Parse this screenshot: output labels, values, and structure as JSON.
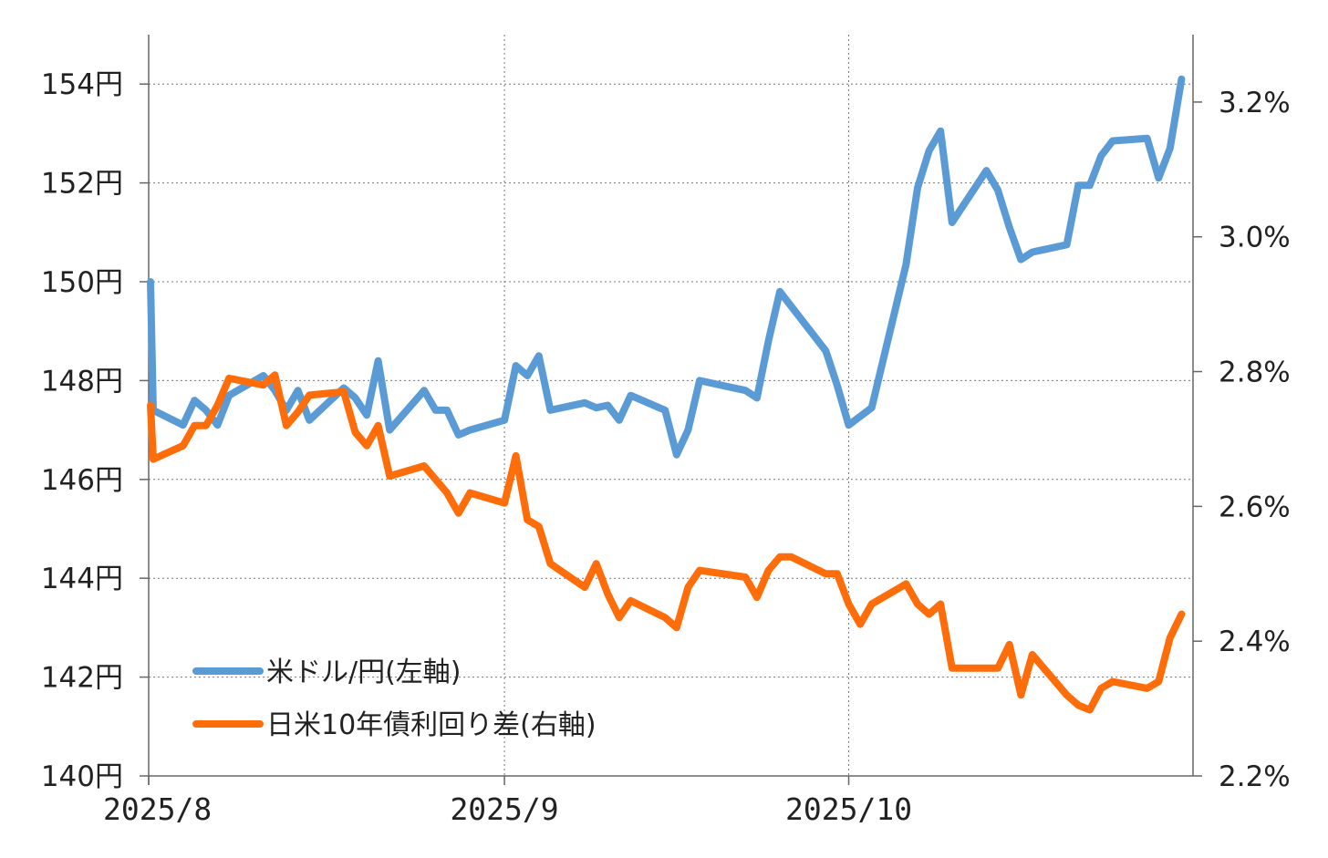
{
  "chart_data": {
    "type": "line",
    "left_axis": {
      "ticks": [
        140,
        142,
        144,
        146,
        148,
        150,
        152,
        154
      ],
      "tick_labels": [
        "140円",
        "142円",
        "144円",
        "146円",
        "148円",
        "150円",
        "152円",
        "154円"
      ],
      "range": [
        140,
        155
      ]
    },
    "right_axis": {
      "ticks": [
        2.2,
        2.4,
        2.6,
        2.8,
        3.0,
        3.2
      ],
      "tick_labels": [
        "2.2%",
        "2.4%",
        "2.6%",
        "2.8%",
        "3.0%",
        "3.2%"
      ],
      "range": [
        2.2,
        3.3
      ]
    },
    "x_axis": {
      "tick_labels": [
        "2025/8",
        "2025/9",
        "2025/10"
      ],
      "tick_dates": [
        "2025-08-01",
        "2025-09-01",
        "2025-10-01"
      ],
      "range": [
        "2025-08-01",
        "2025-10-31"
      ]
    },
    "grid": true,
    "legend_position": "bottom-left",
    "series": [
      {
        "name": "米ドル/円(左軸)",
        "axis": "left",
        "color": "#5b9bd5",
        "points": [
          [
            "2025-08-01",
            150.0
          ],
          [
            "2025-08-01",
            147.4
          ],
          [
            "2025-08-04",
            147.1
          ],
          [
            "2025-08-05",
            147.6
          ],
          [
            "2025-08-06",
            147.4
          ],
          [
            "2025-08-07",
            147.1
          ],
          [
            "2025-08-08",
            147.7
          ],
          [
            "2025-08-11",
            148.1
          ],
          [
            "2025-08-12",
            147.8
          ],
          [
            "2025-08-13",
            147.4
          ],
          [
            "2025-08-14",
            147.8
          ],
          [
            "2025-08-15",
            147.2
          ],
          [
            "2025-08-18",
            147.85
          ],
          [
            "2025-08-19",
            147.65
          ],
          [
            "2025-08-20",
            147.3
          ],
          [
            "2025-08-21",
            148.4
          ],
          [
            "2025-08-22",
            147.0
          ],
          [
            "2025-08-25",
            147.8
          ],
          [
            "2025-08-26",
            147.4
          ],
          [
            "2025-08-27",
            147.4
          ],
          [
            "2025-08-28",
            146.9
          ],
          [
            "2025-08-29",
            147.0
          ],
          [
            "2025-09-01",
            147.2
          ],
          [
            "2025-09-02",
            148.3
          ],
          [
            "2025-09-03",
            148.1
          ],
          [
            "2025-09-04",
            148.5
          ],
          [
            "2025-09-05",
            147.4
          ],
          [
            "2025-09-08",
            147.55
          ],
          [
            "2025-09-09",
            147.45
          ],
          [
            "2025-09-10",
            147.5
          ],
          [
            "2025-09-11",
            147.2
          ],
          [
            "2025-09-12",
            147.7
          ],
          [
            "2025-09-15",
            147.4
          ],
          [
            "2025-09-16",
            146.5
          ],
          [
            "2025-09-17",
            147.0
          ],
          [
            "2025-09-18",
            148.0
          ],
          [
            "2025-09-22",
            147.8
          ],
          [
            "2025-09-23",
            147.65
          ],
          [
            "2025-09-24",
            148.8
          ],
          [
            "2025-09-25",
            149.8
          ],
          [
            "2025-09-29",
            148.6
          ],
          [
            "2025-09-30",
            147.9
          ],
          [
            "2025-10-01",
            147.1
          ],
          [
            "2025-10-03",
            147.45
          ],
          [
            "2025-10-06",
            150.35
          ],
          [
            "2025-10-07",
            151.9
          ],
          [
            "2025-10-08",
            152.65
          ],
          [
            "2025-10-09",
            153.05
          ],
          [
            "2025-10-10",
            151.2
          ],
          [
            "2025-10-13",
            152.25
          ],
          [
            "2025-10-14",
            151.85
          ],
          [
            "2025-10-15",
            151.1
          ],
          [
            "2025-10-16",
            150.45
          ],
          [
            "2025-10-17",
            150.6
          ],
          [
            "2025-10-20",
            150.75
          ],
          [
            "2025-10-21",
            151.95
          ],
          [
            "2025-10-22",
            151.95
          ],
          [
            "2025-10-23",
            152.55
          ],
          [
            "2025-10-24",
            152.85
          ],
          [
            "2025-10-27",
            152.9
          ],
          [
            "2025-10-28",
            152.1
          ],
          [
            "2025-10-29",
            152.7
          ],
          [
            "2025-10-30",
            154.1
          ]
        ]
      },
      {
        "name": "日米10年債利回り差(右軸)",
        "axis": "right",
        "color": "#ff6d0a",
        "points": [
          [
            "2025-08-01",
            2.75
          ],
          [
            "2025-08-01",
            2.67
          ],
          [
            "2025-08-04",
            2.69
          ],
          [
            "2025-08-05",
            2.72
          ],
          [
            "2025-08-06",
            2.72
          ],
          [
            "2025-08-07",
            2.75
          ],
          [
            "2025-08-08",
            2.79
          ],
          [
            "2025-08-11",
            2.78
          ],
          [
            "2025-08-12",
            2.795
          ],
          [
            "2025-08-13",
            2.72
          ],
          [
            "2025-08-14",
            2.74
          ],
          [
            "2025-08-15",
            2.765
          ],
          [
            "2025-08-18",
            2.77
          ],
          [
            "2025-08-19",
            2.71
          ],
          [
            "2025-08-20",
            2.69
          ],
          [
            "2025-08-21",
            2.72
          ],
          [
            "2025-08-22",
            2.645
          ],
          [
            "2025-08-25",
            2.66
          ],
          [
            "2025-08-26",
            2.64
          ],
          [
            "2025-08-27",
            2.62
          ],
          [
            "2025-08-28",
            2.59
          ],
          [
            "2025-08-29",
            2.62
          ],
          [
            "2025-09-01",
            2.605
          ],
          [
            "2025-09-02",
            2.675
          ],
          [
            "2025-09-03",
            2.58
          ],
          [
            "2025-09-04",
            2.57
          ],
          [
            "2025-09-05",
            2.515
          ],
          [
            "2025-09-08",
            2.48
          ],
          [
            "2025-09-09",
            2.515
          ],
          [
            "2025-09-10",
            2.47
          ],
          [
            "2025-09-11",
            2.435
          ],
          [
            "2025-09-12",
            2.46
          ],
          [
            "2025-09-15",
            2.435
          ],
          [
            "2025-09-16",
            2.42
          ],
          [
            "2025-09-17",
            2.48
          ],
          [
            "2025-09-18",
            2.505
          ],
          [
            "2025-09-22",
            2.495
          ],
          [
            "2025-09-23",
            2.465
          ],
          [
            "2025-09-24",
            2.505
          ],
          [
            "2025-09-25",
            2.525
          ],
          [
            "2025-09-26",
            2.525
          ],
          [
            "2025-09-29",
            2.5
          ],
          [
            "2025-09-30",
            2.5
          ],
          [
            "2025-10-01",
            2.455
          ],
          [
            "2025-10-02",
            2.425
          ],
          [
            "2025-10-03",
            2.455
          ],
          [
            "2025-10-06",
            2.485
          ],
          [
            "2025-10-07",
            2.455
          ],
          [
            "2025-10-08",
            2.44
          ],
          [
            "2025-10-09",
            2.455
          ],
          [
            "2025-10-10",
            2.36
          ],
          [
            "2025-10-14",
            2.36
          ],
          [
            "2025-10-15",
            2.395
          ],
          [
            "2025-10-16",
            2.32
          ],
          [
            "2025-10-17",
            2.38
          ],
          [
            "2025-10-20",
            2.32
          ],
          [
            "2025-10-21",
            2.305
          ],
          [
            "2025-10-22",
            2.298
          ],
          [
            "2025-10-23",
            2.33
          ],
          [
            "2025-10-24",
            2.34
          ],
          [
            "2025-10-27",
            2.33
          ],
          [
            "2025-10-28",
            2.34
          ],
          [
            "2025-10-29",
            2.405
          ],
          [
            "2025-10-30",
            2.44
          ]
        ]
      }
    ]
  }
}
